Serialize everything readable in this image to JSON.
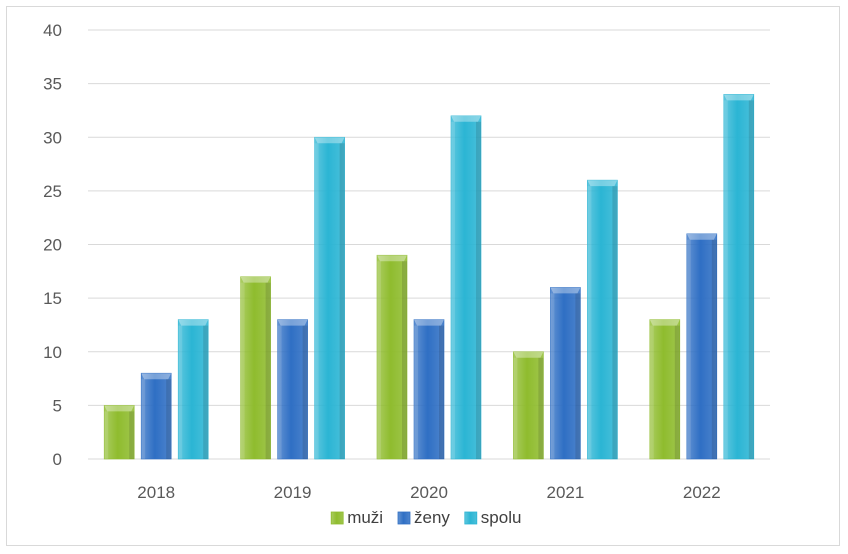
{
  "chart_data": {
    "type": "bar",
    "title": "",
    "xlabel": "",
    "ylabel": "",
    "categories": [
      "2018",
      "2019",
      "2020",
      "2021",
      "2022"
    ],
    "series": [
      {
        "name": "muži",
        "values": [
          5,
          17,
          19,
          10,
          13
        ],
        "color": "#8fbc2e"
      },
      {
        "name": "ženy",
        "values": [
          8,
          13,
          13,
          16,
          21
        ],
        "color": "#2f6fc4"
      },
      {
        "name": "spolu",
        "values": [
          13,
          30,
          32,
          26,
          34
        ],
        "color": "#2bb5d4"
      }
    ],
    "ylim": [
      0,
      40
    ],
    "yticks": [
      0,
      5,
      10,
      15,
      20,
      25,
      30,
      35,
      40
    ],
    "grid": true,
    "legend_position": "bottom"
  }
}
